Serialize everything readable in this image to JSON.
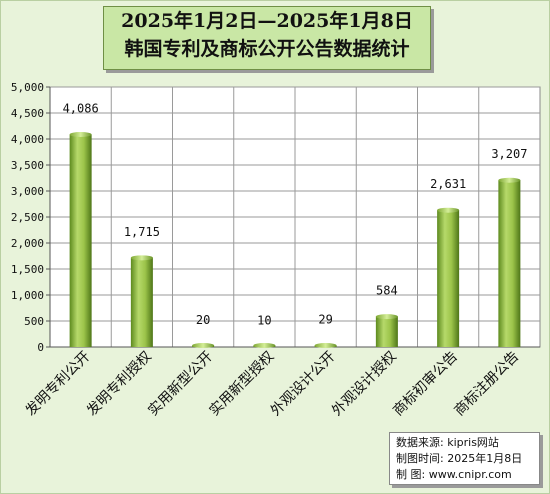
{
  "title": {
    "line1": "2025年1月2日—2025年1月8日",
    "line2": "韩国专利及商标公开公告数据统计"
  },
  "source": {
    "line1": "数据来源: kipris网站",
    "line2": "制图时间: 2025年1月8日",
    "line3": "制    图: www.cnipr.com"
  },
  "chart_data": {
    "type": "bar",
    "categories": [
      "发明专利公开",
      "发明专利授权",
      "实用新型公开",
      "实用新型授权",
      "外观设计公开",
      "外观设计授权",
      "商标初审公告",
      "商标注册公告"
    ],
    "values": [
      4086,
      1715,
      20,
      10,
      29,
      584,
      2631,
      3207
    ],
    "value_labels": [
      "4,086",
      "1,715",
      "20",
      "10",
      "29",
      "584",
      "2,631",
      "3,207"
    ],
    "ylim": [
      0,
      5000
    ],
    "yticks": [
      0,
      500,
      1000,
      1500,
      2000,
      2500,
      3000,
      3500,
      4000,
      4500,
      5000
    ],
    "ytick_labels": [
      "0",
      "500",
      "1,000",
      "1,500",
      "2,000",
      "2,500",
      "3,000",
      "3,500",
      "4,000",
      "4,500",
      "5,000"
    ],
    "grid": true,
    "legend": "none",
    "bar_color": "#8ab43c",
    "plot_background": "#ffffff"
  }
}
